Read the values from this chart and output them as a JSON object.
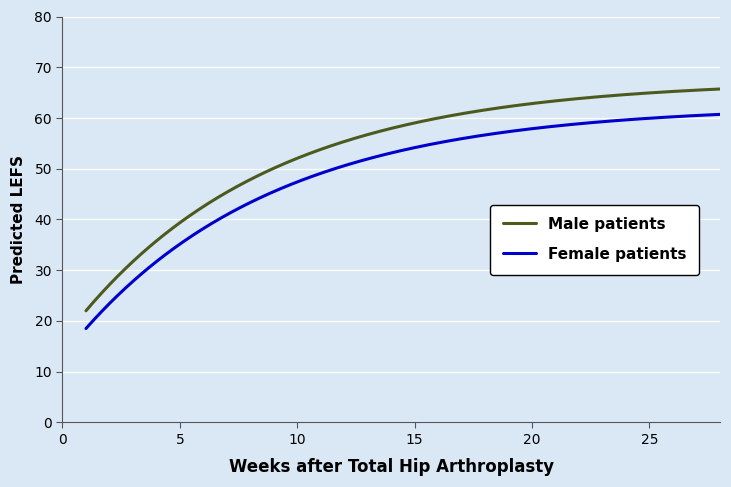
{
  "male_color": "#4D5A1E",
  "female_color": "#0000CC",
  "background_color": "#DAE8F5",
  "plot_bg_color": "#DAE8F5",
  "xlabel": "Weeks after Total Hip Arthroplasty",
  "ylabel": "Predicted LEFS",
  "xlim": [
    0,
    28
  ],
  "ylim": [
    0,
    80
  ],
  "xticks": [
    0,
    5,
    10,
    15,
    20,
    25
  ],
  "yticks": [
    0,
    10,
    20,
    30,
    40,
    50,
    60,
    70,
    80
  ],
  "male_label": "Male patients",
  "female_label": "Female patients",
  "line_width": 2.2,
  "xlabel_fontsize": 12,
  "ylabel_fontsize": 11,
  "tick_fontsize": 10,
  "legend_fontsize": 11,
  "male_y_inf": 67.5,
  "male_y0": 22.0,
  "male_k_num": 45.5,
  "male_k_den": 2.0,
  "male_k_x0": 26,
  "female_y_inf": 62.5,
  "female_y0": 18.5,
  "female_k_num": 44.0,
  "female_k_den": 2.0,
  "female_k_x0": 26
}
